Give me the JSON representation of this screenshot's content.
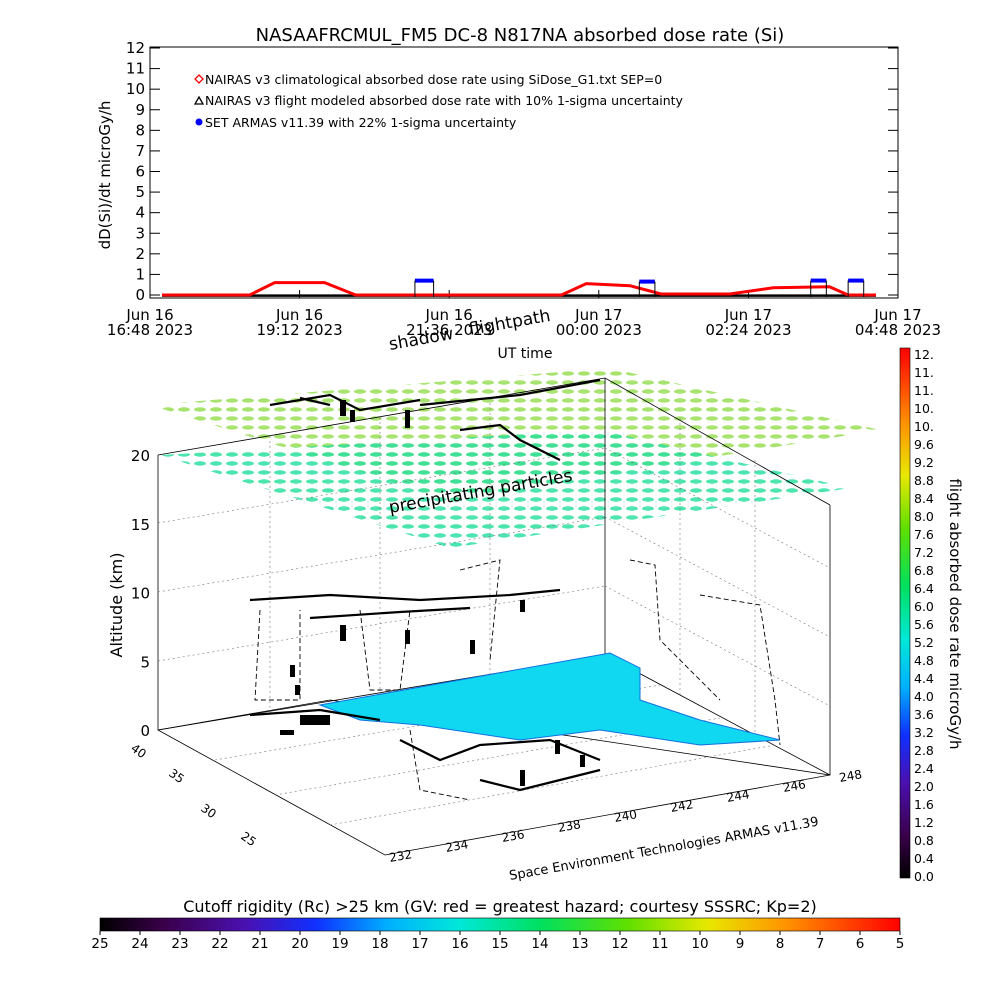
{
  "chart_data": [
    {
      "type": "line",
      "title": "NASAAFRCMUL_FM5 DC-8   N817NA absorbed dose rate (Si)",
      "xlabel": "UT time",
      "ylabel": "dD(Si)/dt microGy/h",
      "ylim": [
        0,
        12
      ],
      "yticks": [
        "0",
        "1",
        "2",
        "3",
        "4",
        "5",
        "6",
        "7",
        "8",
        "9",
        "10",
        "11",
        "12"
      ],
      "xlim_hours": [
        0,
        12
      ],
      "xticks": [
        {
          "hours": 0,
          "line1": "Jun 16",
          "line2": "16:48 2023"
        },
        {
          "hours": 2.4,
          "line1": "Jun 16",
          "line2": "19:12 2023"
        },
        {
          "hours": 4.8,
          "line1": "Jun 16",
          "line2": "21:36 2023"
        },
        {
          "hours": 7.2,
          "line1": "Jun 17",
          "line2": "00:00 2023"
        },
        {
          "hours": 9.6,
          "line1": "Jun 17",
          "line2": "02:24 2023"
        },
        {
          "hours": 12,
          "line1": "Jun 17",
          "line2": "04:48 2023"
        }
      ],
      "legend_position": "top-left",
      "series": [
        {
          "name": "NAIRAS v3 climatological absorbed dose rate using SiDose_G1.txt SEP=0",
          "color": "#ff0000",
          "marker": "diamond",
          "points": [
            [
              0,
              0.05
            ],
            [
              1.6,
              0.05
            ],
            [
              2.0,
              0.65
            ],
            [
              2.8,
              0.65
            ],
            [
              3.3,
              0.05
            ],
            [
              6.6,
              0.05
            ],
            [
              7.0,
              0.6
            ],
            [
              7.7,
              0.5
            ],
            [
              8.2,
              0.1
            ],
            [
              9.3,
              0.1
            ],
            [
              10.0,
              0.4
            ],
            [
              10.9,
              0.45
            ],
            [
              11.2,
              0.05
            ],
            [
              13.2,
              0.05
            ]
          ]
        },
        {
          "name": "NAIRAS v3 flight modeled absorbed dose rate with 10% 1-sigma uncertainty",
          "color": "#000000",
          "marker": "triangle",
          "points": [
            [
              0,
              0.02
            ],
            [
              13.2,
              0.02
            ]
          ]
        },
        {
          "name": "SET ARMAS v11.39 with 22% 1-sigma uncertainty",
          "color": "#0000ff",
          "marker": "circle",
          "points": [
            [
              4.25,
              0.75
            ],
            [
              4.55,
              0.75
            ],
            [
              7.85,
              0.7
            ],
            [
              8.1,
              0.7
            ],
            [
              10.6,
              0.75
            ],
            [
              10.85,
              0.75
            ],
            [
              11.2,
              0.75
            ],
            [
              11.45,
              0.75
            ]
          ]
        }
      ]
    },
    {
      "type": "scatter",
      "subtype": "3d-flight-path",
      "zlabel": "Altitude (km)",
      "zticks": [
        "0",
        "5",
        "10",
        "15",
        "20"
      ],
      "zlim": [
        0,
        20
      ],
      "lat_ticks": [
        "25",
        "30",
        "35",
        "40"
      ],
      "lon_ticks": [
        "232",
        "234",
        "236",
        "238",
        "240",
        "242",
        "244",
        "246",
        "248"
      ],
      "annotations": [
        "shadow",
        "flightpath",
        "precipitating particles"
      ],
      "credit": "Space Environment Technologies ARMAS v11.39",
      "colorbar": {
        "label": "flight absorbed dose rate microGy/h",
        "range": [
          0,
          12
        ],
        "ticks": [
          "0.0",
          "0.4",
          "0.8",
          "1.2",
          "1.6",
          "2.0",
          "2.4",
          "2.8",
          "3.2",
          "3.6",
          "4.0",
          "4.4",
          "4.8",
          "5.2",
          "5.6",
          "6.0",
          "6.4",
          "6.8",
          "7.2",
          "7.6",
          "8.0",
          "8.4",
          "8.8",
          "9.2",
          "9.6",
          "10.",
          "10.",
          "11.",
          "11.",
          "12."
        ]
      }
    },
    {
      "type": "heatmap",
      "subtype": "colorbar",
      "title": "Cutoff rigidity (Rc) >25 km (GV: red = greatest hazard; courtesy SSSRC; Kp=2)",
      "ticks": [
        "25",
        "24",
        "23",
        "22",
        "21",
        "20",
        "19",
        "18",
        "17",
        "16",
        "15",
        "14",
        "13",
        "12",
        "11",
        "10",
        "9",
        "8",
        "7",
        "6",
        "5"
      ]
    }
  ]
}
